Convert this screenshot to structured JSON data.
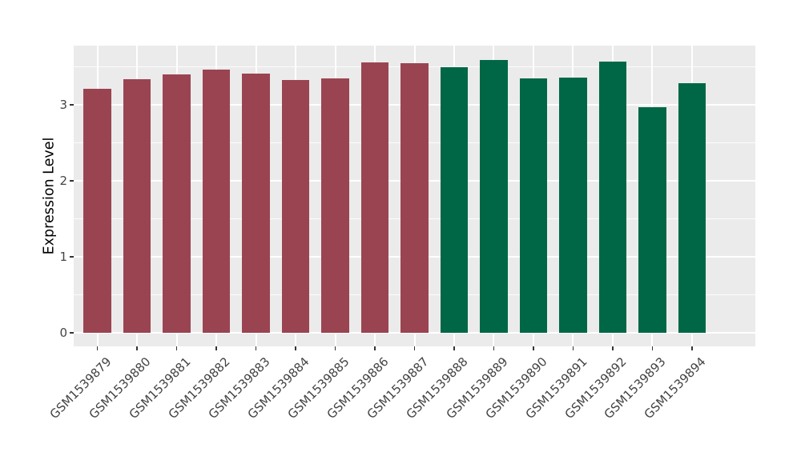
{
  "figure": {
    "background": "#ffffff",
    "panel_background": "#EBEBEB",
    "grid_color": "#FFFFFF",
    "tick_mark_color": "#333333",
    "axis_text_color": "#444444",
    "axis_title_color": "#000000"
  },
  "chart_data": {
    "type": "bar",
    "title": "",
    "xlabel": "",
    "ylabel": "Expression Level",
    "legend_position": "none",
    "grid": true,
    "x_label_rotation_deg": 45,
    "categories": [
      "GSM1539879",
      "GSM1539880",
      "GSM1539881",
      "GSM1539882",
      "GSM1539883",
      "GSM1539884",
      "GSM1539885",
      "GSM1539886",
      "GSM1539887",
      "GSM1539888",
      "GSM1539889",
      "GSM1539890",
      "GSM1539891",
      "GSM1539892",
      "GSM1539893",
      "GSM1539894"
    ],
    "values": [
      3.21,
      3.34,
      3.4,
      3.46,
      3.41,
      3.33,
      3.35,
      3.56,
      3.55,
      3.5,
      3.59,
      3.35,
      3.36,
      3.57,
      2.97,
      3.29
    ],
    "colors": [
      "#9B4451",
      "#9B4451",
      "#9B4451",
      "#9B4451",
      "#9B4451",
      "#9B4451",
      "#9B4451",
      "#9B4451",
      "#9B4451",
      "#006746",
      "#006746",
      "#006746",
      "#006746",
      "#006746",
      "#006746",
      "#006746"
    ],
    "color_groups": [
      {
        "color": "#9B4451",
        "first_category": "GSM1539879",
        "last_category": "GSM1539887"
      },
      {
        "color": "#006746",
        "first_category": "GSM1539888",
        "last_category": "GSM1539894"
      }
    ],
    "yticks": [
      0,
      1,
      2,
      3
    ],
    "yticks_minor": [
      0.5,
      1.5,
      2.5,
      3.5
    ],
    "ylim": [
      -0.18,
      3.78
    ],
    "bar_width_fraction": 0.7
  }
}
